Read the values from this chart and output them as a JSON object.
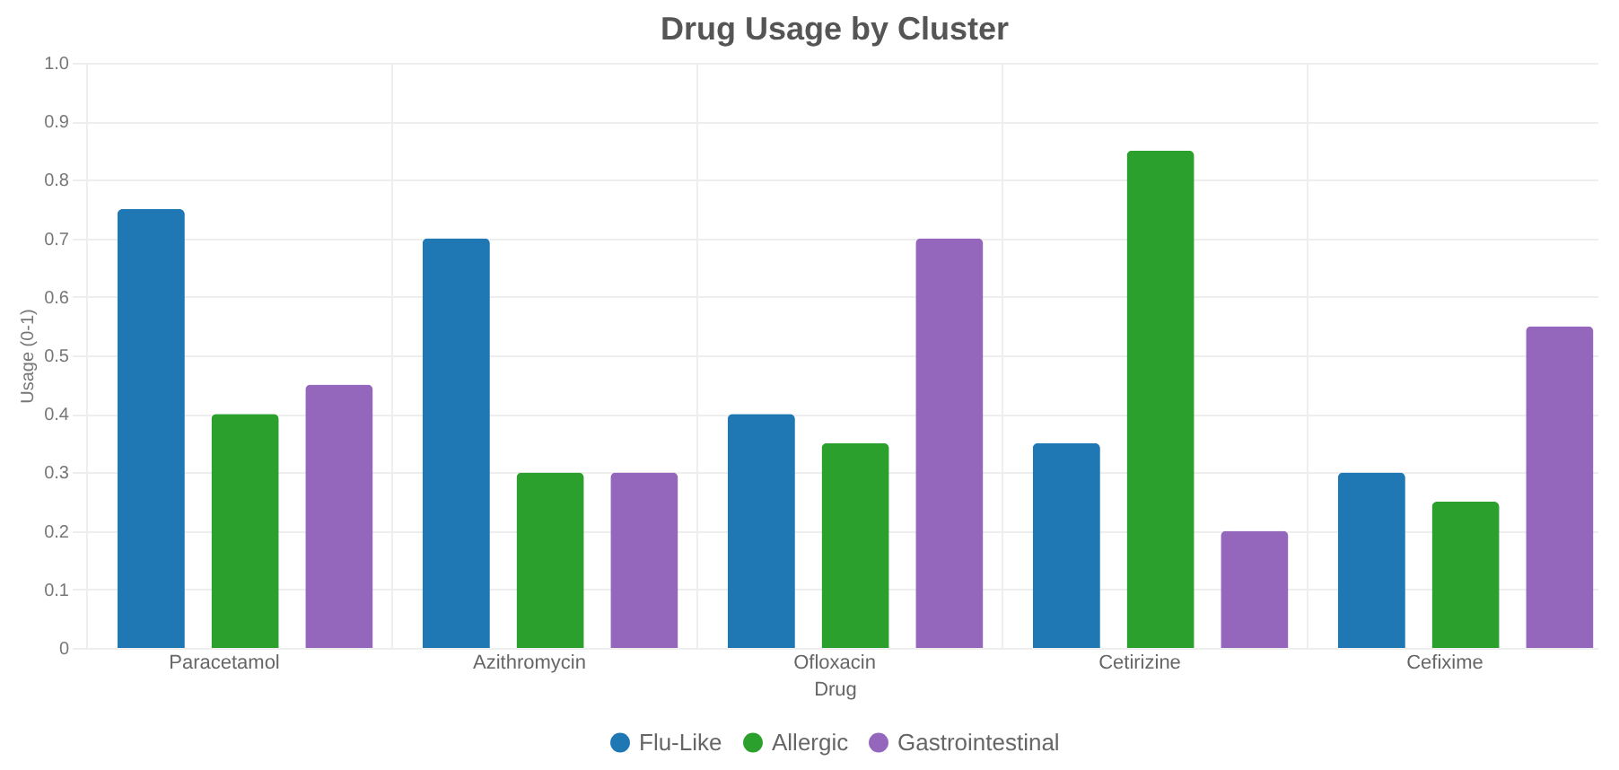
{
  "chart_data": {
    "type": "bar",
    "title": "Drug Usage by Cluster",
    "xlabel": "Drug",
    "ylabel": "Usage (0-1)",
    "categories": [
      "Paracetamol",
      "Azithromycin",
      "Ofloxacin",
      "Cetirizine",
      "Cefixime"
    ],
    "series": [
      {
        "name": "Flu-Like",
        "color": "#1f77b4",
        "values": [
          0.75,
          0.7,
          0.4,
          0.35,
          0.3
        ]
      },
      {
        "name": "Allergic",
        "color": "#2ca02c",
        "values": [
          0.4,
          0.3,
          0.35,
          0.85,
          0.25
        ]
      },
      {
        "name": "Gastrointestinal",
        "color": "#9467bd",
        "values": [
          0.45,
          0.3,
          0.7,
          0.2,
          0.55
        ]
      }
    ],
    "ylim": [
      0,
      1
    ],
    "yticks": [
      0,
      0.1,
      0.2,
      0.3,
      0.4,
      0.5,
      0.6,
      0.7,
      0.8,
      0.9,
      {
        "value": 1,
        "label": "1.0"
      }
    ],
    "grid": true,
    "legend": "bottom"
  }
}
